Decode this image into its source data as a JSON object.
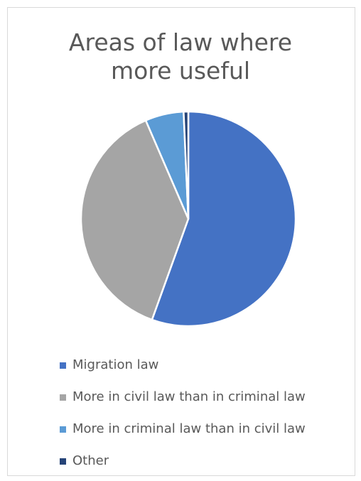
{
  "chart_data": {
    "type": "pie",
    "title": "Areas of law where more useful",
    "categories": [
      "Migration law",
      "More in civil law than in criminal law",
      "More in criminal law than in civil law",
      "Other"
    ],
    "values": [
      55.5,
      38,
      5.8,
      0.7
    ],
    "unit": "percent",
    "colors": [
      "#4472c4",
      "#a5a5a5",
      "#5b9bd5",
      "#264478"
    ],
    "legend_position": "bottom",
    "start_angle_deg": 0,
    "direction": "clockwise"
  }
}
